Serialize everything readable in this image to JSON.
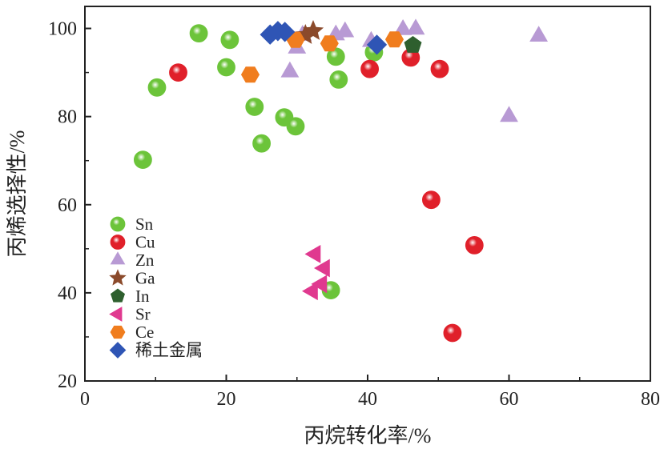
{
  "chart_data": {
    "type": "scatter",
    "title": "",
    "xlabel": "丙烷转化率/%",
    "ylabel": "丙烯选择性/%",
    "xlim": [
      0,
      80
    ],
    "ylim": [
      20,
      105
    ],
    "xticks": [
      0,
      20,
      40,
      60,
      80
    ],
    "yticks": [
      20,
      40,
      60,
      80,
      100
    ],
    "x_tick_labels": [
      "0",
      "20",
      "40",
      "60",
      "80"
    ],
    "y_tick_labels": [
      "20",
      "40",
      "60",
      "80",
      "100"
    ],
    "grid": false,
    "legend_position": "bottom-left",
    "series": [
      {
        "name": "Sn",
        "marker": "sphere",
        "color": "#6cc43a",
        "points": [
          [
            8.2,
            70.2
          ],
          [
            10.2,
            86.6
          ],
          [
            16.1,
            98.9
          ],
          [
            20.0,
            91.2
          ],
          [
            20.5,
            97.4
          ],
          [
            24.0,
            82.2
          ],
          [
            25.0,
            73.9
          ],
          [
            28.2,
            79.8
          ],
          [
            29.8,
            77.8
          ],
          [
            35.5,
            93.6
          ],
          [
            35.9,
            88.4
          ],
          [
            40.9,
            94.6
          ],
          [
            34.8,
            40.6
          ]
        ]
      },
      {
        "name": "Cu",
        "marker": "sphere",
        "color": "#e0202a",
        "points": [
          [
            13.2,
            90.0
          ],
          [
            40.3,
            90.8
          ],
          [
            46.1,
            93.4
          ],
          [
            50.2,
            90.8
          ],
          [
            49.0,
            61.1
          ],
          [
            55.1,
            50.8
          ],
          [
            52.0,
            30.9
          ]
        ]
      },
      {
        "name": "Zn",
        "marker": "triangle-up",
        "color": "#b89ad4",
        "points": [
          [
            29.0,
            90.1
          ],
          [
            30.0,
            95.5
          ],
          [
            30.8,
            98.4
          ],
          [
            35.5,
            98.5
          ],
          [
            36.8,
            99.2
          ],
          [
            40.5,
            97.0
          ],
          [
            45.0,
            99.7
          ],
          [
            46.8,
            99.8
          ],
          [
            64.2,
            98.2
          ],
          [
            60.0,
            80.0
          ]
        ]
      },
      {
        "name": "Ga",
        "marker": "star",
        "color": "#8b4a2b",
        "points": [
          [
            31.2,
            98.5
          ],
          [
            32.3,
            99.4
          ]
        ]
      },
      {
        "name": "In",
        "marker": "pentagon",
        "color": "#2e5f2e",
        "points": [
          [
            46.4,
            96.2
          ]
        ]
      },
      {
        "name": "Sr",
        "marker": "triangle-left",
        "color": "#e0398f",
        "points": [
          [
            32.6,
            48.8
          ],
          [
            33.9,
            45.6
          ],
          [
            33.5,
            42.0
          ],
          [
            32.2,
            40.4
          ]
        ]
      },
      {
        "name": "Ce",
        "marker": "hexagon",
        "color": "#f07d1e",
        "points": [
          [
            23.4,
            89.5
          ],
          [
            29.8,
            97.4
          ],
          [
            34.6,
            96.6
          ],
          [
            43.8,
            97.5
          ]
        ]
      },
      {
        "name": "稀土金属",
        "marker": "diamond",
        "color": "#2f55b5",
        "points": [
          [
            26.2,
            98.6
          ],
          [
            27.3,
            99.4
          ],
          [
            28.3,
            99.2
          ],
          [
            41.3,
            96.3
          ]
        ]
      }
    ]
  },
  "colors": {
    "axis": "#222222"
  }
}
